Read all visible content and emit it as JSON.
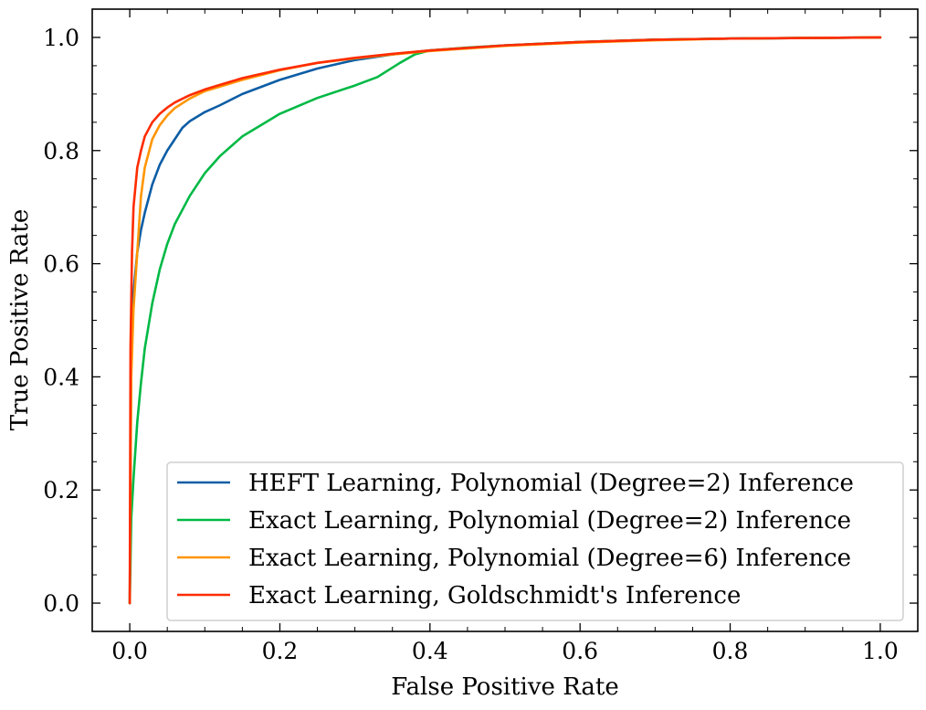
{
  "chart_data": {
    "type": "line",
    "title": "",
    "xlabel": "False Positive Rate",
    "ylabel": "True Positive Rate",
    "xlim": [
      -0.05,
      1.05
    ],
    "ylim": [
      -0.05,
      1.05
    ],
    "x_ticks": [
      "0.0",
      "0.2",
      "0.4",
      "0.6",
      "0.8",
      "1.0"
    ],
    "y_ticks": [
      "0.0",
      "0.2",
      "0.4",
      "0.6",
      "0.8",
      "1.0"
    ],
    "grid": false,
    "legend_position": "lower-right",
    "series": [
      {
        "name": "HEFT Learning, Polynomial (Degree=2) Inference",
        "color": "#0C5DA5",
        "x": [
          0,
          0.002,
          0.005,
          0.01,
          0.015,
          0.02,
          0.03,
          0.04,
          0.05,
          0.06,
          0.07,
          0.08,
          0.1,
          0.12,
          0.15,
          0.2,
          0.25,
          0.3,
          0.35,
          0.4,
          0.5,
          0.6,
          0.7,
          0.8,
          0.9,
          1.0
        ],
        "y": [
          0,
          0.45,
          0.55,
          0.62,
          0.66,
          0.69,
          0.74,
          0.775,
          0.8,
          0.82,
          0.84,
          0.852,
          0.868,
          0.88,
          0.9,
          0.925,
          0.945,
          0.96,
          0.97,
          0.977,
          0.986,
          0.992,
          0.996,
          0.998,
          0.999,
          1.0
        ]
      },
      {
        "name": "Exact Learning, Polynomial (Degree=2) Inference",
        "color": "#00B945",
        "x": [
          0,
          0.002,
          0.005,
          0.01,
          0.015,
          0.02,
          0.03,
          0.04,
          0.05,
          0.06,
          0.08,
          0.1,
          0.12,
          0.15,
          0.2,
          0.25,
          0.3,
          0.33,
          0.36,
          0.38,
          0.4,
          0.45,
          0.5,
          0.6,
          0.7,
          0.8,
          0.9,
          1.0
        ],
        "y": [
          0,
          0.15,
          0.22,
          0.32,
          0.39,
          0.45,
          0.53,
          0.59,
          0.635,
          0.67,
          0.72,
          0.76,
          0.79,
          0.825,
          0.865,
          0.893,
          0.915,
          0.93,
          0.955,
          0.97,
          0.977,
          0.982,
          0.986,
          0.992,
          0.996,
          0.998,
          0.999,
          1.0
        ]
      },
      {
        "name": "Exact Learning, Polynomial (Degree=6) Inference",
        "color": "#FF9500",
        "x": [
          0,
          0.002,
          0.005,
          0.01,
          0.015,
          0.02,
          0.03,
          0.04,
          0.05,
          0.06,
          0.08,
          0.1,
          0.15,
          0.2,
          0.25,
          0.3,
          0.35,
          0.4,
          0.5,
          0.6,
          0.7,
          0.8,
          0.9,
          1.0
        ],
        "y": [
          0,
          0.4,
          0.52,
          0.62,
          0.72,
          0.77,
          0.82,
          0.845,
          0.862,
          0.875,
          0.892,
          0.905,
          0.925,
          0.942,
          0.955,
          0.963,
          0.97,
          0.976,
          0.985,
          0.991,
          0.995,
          0.998,
          0.999,
          1.0
        ]
      },
      {
        "name": "Exact Learning, Goldschmidt's Inference",
        "color": "#FF2C00",
        "x": [
          0,
          0.001,
          0.003,
          0.005,
          0.01,
          0.015,
          0.02,
          0.03,
          0.04,
          0.05,
          0.06,
          0.08,
          0.1,
          0.15,
          0.2,
          0.25,
          0.3,
          0.35,
          0.4,
          0.5,
          0.6,
          0.7,
          0.8,
          0.9,
          1.0
        ],
        "y": [
          0,
          0.45,
          0.62,
          0.7,
          0.77,
          0.8,
          0.825,
          0.85,
          0.865,
          0.876,
          0.885,
          0.898,
          0.908,
          0.928,
          0.943,
          0.955,
          0.964,
          0.971,
          0.977,
          0.986,
          0.992,
          0.996,
          0.998,
          0.999,
          1.0
        ]
      }
    ]
  }
}
